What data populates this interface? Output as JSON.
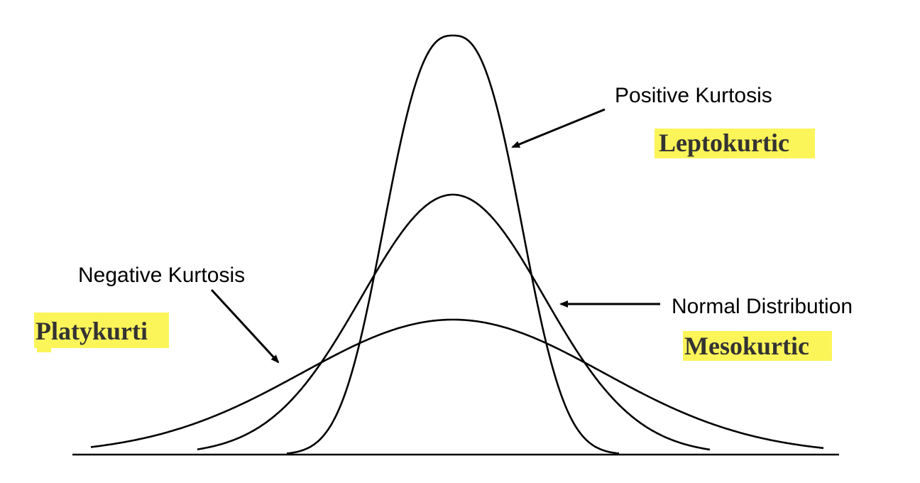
{
  "labels": {
    "positive": "Positive Kurtosis",
    "leptokurtic": "Leptokurtic",
    "negative": "Negative Kurtosis",
    "platykurti": "Platykurti",
    "normal": "Normal Distribution",
    "mesokurtic": "Mesokurtic"
  },
  "colors": {
    "highlight": "#fbf55a",
    "line": "#000000",
    "highlight_text": "#333333"
  },
  "curves": [
    {
      "id": "leptokurtic",
      "shape": "tall narrow peak"
    },
    {
      "id": "mesokurtic",
      "shape": "normal bell"
    },
    {
      "id": "platykurtic",
      "shape": "flat wide"
    }
  ]
}
